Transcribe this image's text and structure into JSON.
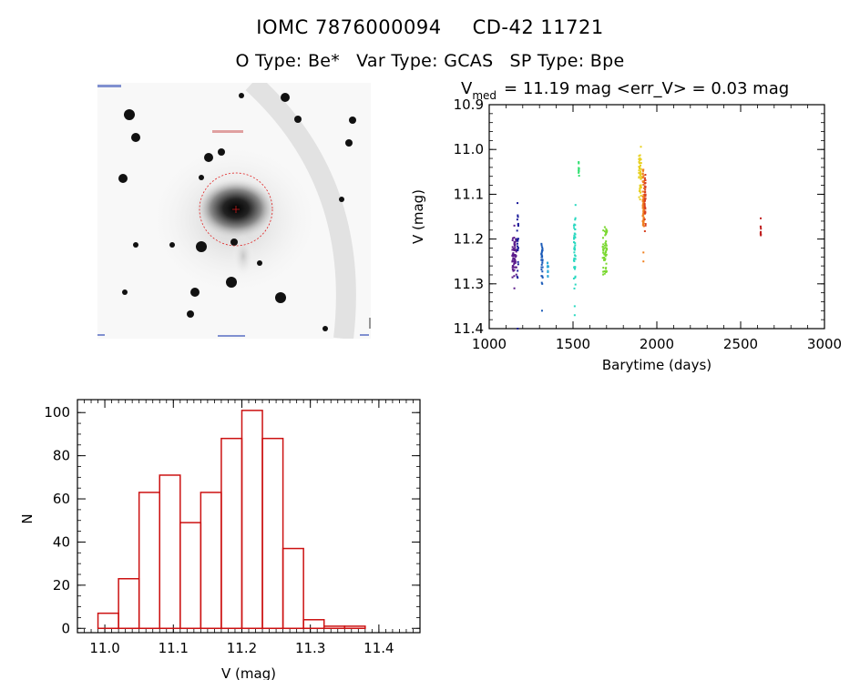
{
  "header": {
    "id_left": "IOMC 7876000094",
    "id_right": "CD-42 11721",
    "o_type": "O Type: Be*",
    "var_type": "Var Type: GCAS",
    "sp_type": "SP Type: Bpe"
  },
  "stamp": {
    "note": "grey-scale sky image with red circle aperture"
  },
  "chart_data": [
    {
      "type": "scatter",
      "title_prefix": "V",
      "title_sub": "med",
      "title_rest": "= 11.19 mag <err_V> = 0.03 mag",
      "xlabel": "Barytime (days)",
      "ylabel": "V (mag)",
      "xlim": [
        1000,
        3000
      ],
      "ylim": [
        10.9,
        11.4
      ],
      "y_inverted": true,
      "xticks": [
        1000,
        1500,
        2000,
        2500,
        3000
      ],
      "yticks": [
        10.9,
        11.0,
        11.1,
        11.2,
        11.3,
        11.4
      ],
      "ytick_labels": [
        "10.9",
        "11.0",
        "11.1",
        "11.2",
        "11.3",
        "11.4"
      ],
      "groups": [
        {
          "x": 1150,
          "spread": 25,
          "y_min": 11.19,
          "y_max": 11.29,
          "extra": [
            11.17,
            11.31
          ],
          "n": 60,
          "color": "#5a1a8a"
        },
        {
          "x": 1170,
          "spread": 8,
          "y_min": 11.11,
          "y_max": 11.33,
          "extra": [
            11.4
          ],
          "n": 25,
          "color": "#1a1a9a"
        },
        {
          "x": 1315,
          "spread": 8,
          "y_min": 11.19,
          "y_max": 11.31,
          "extra": [
            11.36
          ],
          "n": 30,
          "color": "#1a5ab8"
        },
        {
          "x": 1350,
          "spread": 6,
          "y_min": 11.24,
          "y_max": 11.3,
          "extra": [],
          "n": 14,
          "color": "#2ea8d8"
        },
        {
          "x": 1510,
          "spread": 10,
          "y_min": 11.12,
          "y_max": 11.33,
          "extra": [
            11.37,
            11.35
          ],
          "n": 45,
          "color": "#2ad8c0"
        },
        {
          "x": 1535,
          "spread": 4,
          "y_min": 11.02,
          "y_max": 11.09,
          "extra": [],
          "n": 10,
          "color": "#30e070"
        },
        {
          "x": 1690,
          "spread": 25,
          "y_min": 11.16,
          "y_max": 11.3,
          "extra": [],
          "n": 60,
          "color": "#7ad830"
        },
        {
          "x": 1900,
          "spread": 14,
          "y_min": 10.99,
          "y_max": 11.12,
          "extra": [],
          "n": 45,
          "color": "#e8d020"
        },
        {
          "x": 1920,
          "spread": 8,
          "y_min": 11.03,
          "y_max": 11.2,
          "extra": [
            11.23,
            11.25
          ],
          "n": 70,
          "color": "#f08020"
        },
        {
          "x": 1930,
          "spread": 6,
          "y_min": 11.05,
          "y_max": 11.19,
          "extra": [],
          "n": 40,
          "color": "#d84020"
        },
        {
          "x": 2620,
          "spread": 2,
          "y_min": 11.15,
          "y_max": 11.21,
          "extra": [],
          "n": 10,
          "color": "#c02020"
        }
      ]
    },
    {
      "type": "bar",
      "xlabel": "V (mag)",
      "ylabel": "N",
      "xlim": [
        10.96,
        11.46
      ],
      "ylim": [
        -2,
        106
      ],
      "xticks": [
        11.0,
        11.1,
        11.2,
        11.3,
        11.4
      ],
      "xtick_labels": [
        "11.0",
        "11.1",
        "11.2",
        "11.3",
        "11.4"
      ],
      "yticks": [
        0,
        20,
        40,
        60,
        80,
        100
      ],
      "bin_edges": [
        10.99,
        11.02,
        11.05,
        11.08,
        11.11,
        11.14,
        11.17,
        11.2,
        11.23,
        11.26,
        11.29,
        11.32,
        11.35,
        11.38,
        11.41
      ],
      "values": [
        7,
        23,
        63,
        71,
        49,
        63,
        88,
        101,
        88,
        37,
        4,
        1,
        1,
        0
      ],
      "color": "#cc1111"
    }
  ]
}
